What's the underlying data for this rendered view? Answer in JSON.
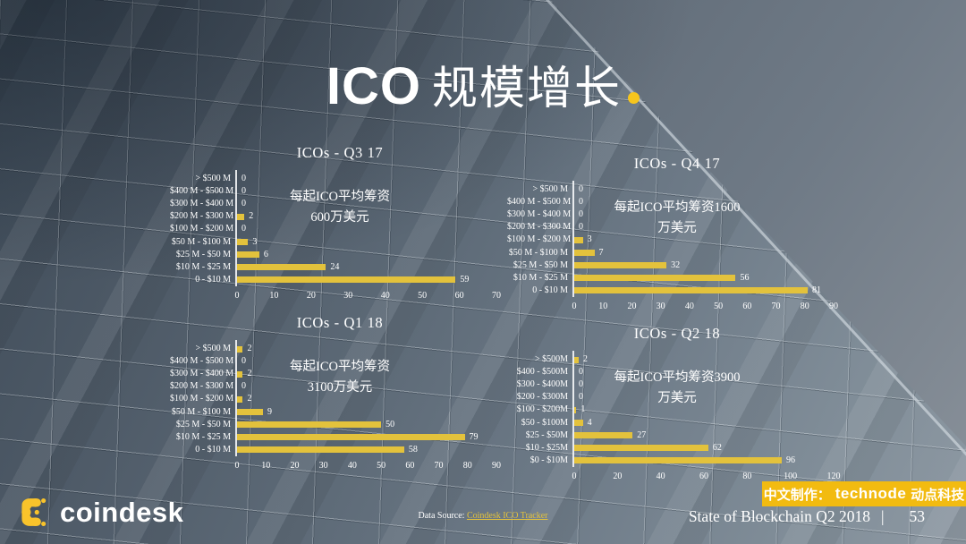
{
  "header": {
    "title_en": "ICO",
    "title_zh": "规模增长"
  },
  "chart_data": [
    {
      "type": "bar",
      "orientation": "horizontal",
      "title": "ICOs - Q3 17",
      "annotation": [
        "每起ICO平均筹资",
        "600万美元"
      ],
      "categories": [
        "> $500 M",
        "$400 M - $500 M",
        "$300 M - $400 M",
        "$200 M - $300 M",
        "$100 M - $200 M",
        "$50 M - $100 M",
        "$25 M - $50 M",
        "$10 M - $25 M",
        "0 - $10 M"
      ],
      "values": [
        0,
        0,
        0,
        2,
        0,
        3,
        6,
        24,
        59
      ],
      "xticks": [
        0,
        10,
        20,
        30,
        40,
        50,
        60,
        70
      ],
      "xlim": [
        0,
        70
      ],
      "grid": false,
      "bar_color": "#E3C23C"
    },
    {
      "type": "bar",
      "orientation": "horizontal",
      "title": "ICOs - Q4 17",
      "annotation": [
        "每起ICO平均筹资1600",
        "万美元"
      ],
      "categories": [
        "> $500 M",
        "$400 M - $500 M",
        "$300 M - $400 M",
        "$200 M - $300 M",
        "$100 M - $200 M",
        "$50 M - $100 M",
        "$25 M - $50 M",
        "$10 M - $25 M",
        "0 - $10 M"
      ],
      "values": [
        0,
        0,
        0,
        0,
        3,
        7,
        32,
        56,
        81
      ],
      "xticks": [
        0,
        10,
        20,
        30,
        40,
        50,
        60,
        70,
        80,
        90
      ],
      "xlim": [
        0,
        90
      ],
      "grid": false,
      "bar_color": "#E3C23C"
    },
    {
      "type": "bar",
      "orientation": "horizontal",
      "title": "ICOs - Q1 18",
      "annotation": [
        "每起ICO平均筹资",
        "3100万美元"
      ],
      "categories": [
        "> $500 M",
        "$400 M - $500 M",
        "$300 M - $400 M",
        "$200 M - $300 M",
        "$100 M - $200 M",
        "$50 M - $100 M",
        "$25 M - $50 M",
        "$10 M - $25 M",
        "0 - $10 M"
      ],
      "values": [
        2,
        0,
        2,
        0,
        2,
        9,
        50,
        79,
        58
      ],
      "xticks": [
        0,
        10,
        20,
        30,
        40,
        50,
        60,
        70,
        80,
        90
      ],
      "xlim": [
        0,
        90
      ],
      "grid": false,
      "bar_color": "#E3C23C"
    },
    {
      "type": "bar",
      "orientation": "horizontal",
      "title": "ICOs - Q2 18",
      "annotation": [
        "每起ICO平均筹资3900",
        "万美元"
      ],
      "categories": [
        "> $500M",
        "$400 - $500M",
        "$300 - $400M",
        "$200 - $300M",
        "$100 - $200M",
        "$50 - $100M",
        "$25 - $50M",
        "$10 - $25M",
        "$0 - $10M"
      ],
      "values": [
        2,
        0,
        0,
        0,
        1,
        4,
        27,
        62,
        96
      ],
      "xticks": [
        0,
        20,
        40,
        60,
        80,
        100,
        120
      ],
      "xlim": [
        0,
        120
      ],
      "grid": false,
      "bar_color": "#E3C23C"
    }
  ],
  "footer": {
    "brand": "coindesk",
    "data_source_label": "Data Source: ",
    "data_source_link": "Coindesk ICO Tracker",
    "credit_prefix": "中文制作：",
    "credit_brand": "technode",
    "credit_suffix": "动点科技",
    "slide_title": "State of Blockchain Q2 2018",
    "separator": "|",
    "page_number": "53"
  },
  "colors": {
    "bar_yellow": "#E3C23C",
    "title_dot_yellow": "#F6C51D",
    "credit_box_yellow": "#F2BB10",
    "link_yellow": "#E3C23C",
    "logo_yellow": "#F9C32B"
  }
}
